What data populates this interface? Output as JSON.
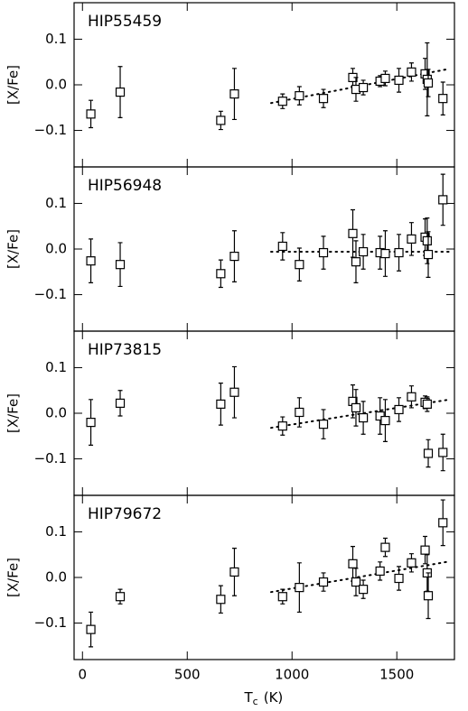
{
  "chart_data": [
    {
      "type": "scatter",
      "title": "HIP55459",
      "ylabel": "[X/Fe]",
      "x": [
        40,
        180,
        660,
        725,
        955,
        1035,
        1150,
        1290,
        1305,
        1340,
        1420,
        1445,
        1510,
        1570,
        1635,
        1645,
        1650,
        1720
      ],
      "values": [
        -0.064,
        -0.016,
        -0.078,
        -0.02,
        -0.036,
        -0.024,
        -0.03,
        0.016,
        -0.01,
        -0.006,
        0.008,
        0.014,
        0.01,
        0.028,
        0.024,
        0.012,
        0.004,
        -0.03
      ],
      "errors": [
        0.03,
        0.056,
        0.02,
        0.056,
        0.016,
        0.02,
        0.02,
        0.02,
        0.026,
        0.016,
        0.012,
        0.016,
        0.026,
        0.02,
        0.034,
        0.08,
        0.03,
        0.036
      ],
      "fit": {
        "x": [
          900,
          1750
        ],
        "values": [
          -0.04,
          0.035
        ]
      },
      "xlim": [
        -40,
        1775
      ],
      "xticks": [
        0,
        500,
        1000,
        1500
      ],
      "ylim": [
        -0.18,
        0.18
      ],
      "yticks": [
        {
          "value": -0.1,
          "label": "−0.1"
        },
        {
          "value": 0,
          "label": "0.0"
        },
        0.1
      ]
    },
    {
      "type": "scatter",
      "title": "HIP56948",
      "ylabel": "[X/Fe]",
      "x": [
        40,
        180,
        660,
        725,
        955,
        1035,
        1150,
        1290,
        1305,
        1340,
        1420,
        1445,
        1510,
        1570,
        1635,
        1645,
        1650,
        1720
      ],
      "values": [
        -0.026,
        -0.034,
        -0.054,
        -0.016,
        0.006,
        -0.034,
        -0.008,
        0.034,
        -0.028,
        -0.006,
        -0.008,
        -0.01,
        -0.008,
        0.022,
        0.026,
        0.018,
        -0.012,
        0.108
      ],
      "errors": [
        0.048,
        0.048,
        0.03,
        0.056,
        0.03,
        0.036,
        0.036,
        0.052,
        0.046,
        0.038,
        0.036,
        0.05,
        0.04,
        0.036,
        0.04,
        0.05,
        0.05,
        0.056
      ],
      "fit": {
        "x": [
          900,
          1750
        ],
        "values": [
          -0.006,
          -0.006
        ]
      },
      "xlim": [
        -40,
        1775
      ],
      "xticks": [
        0,
        500,
        1000,
        1500
      ],
      "ylim": [
        -0.18,
        0.18
      ],
      "yticks": [
        {
          "value": -0.1,
          "label": "−0.1"
        },
        {
          "value": 0,
          "label": "0.0"
        },
        0.1
      ]
    },
    {
      "type": "scatter",
      "title": "HIP73815",
      "ylabel": "[X/Fe]",
      "x": [
        40,
        180,
        660,
        725,
        955,
        1035,
        1150,
        1290,
        1305,
        1340,
        1420,
        1445,
        1510,
        1570,
        1635,
        1645,
        1650,
        1720
      ],
      "values": [
        -0.02,
        0.022,
        0.02,
        0.046,
        -0.028,
        0.002,
        -0.024,
        0.026,
        0.012,
        -0.01,
        -0.006,
        -0.016,
        0.008,
        0.036,
        0.024,
        0.02,
        -0.088,
        -0.086
      ],
      "errors": [
        0.05,
        0.028,
        0.046,
        0.056,
        0.02,
        0.032,
        0.032,
        0.036,
        0.04,
        0.036,
        0.04,
        0.046,
        0.026,
        0.024,
        0.014,
        0.016,
        0.03,
        0.04
      ],
      "fit": {
        "x": [
          900,
          1750
        ],
        "values": [
          -0.032,
          0.03
        ]
      },
      "xlim": [
        -40,
        1775
      ],
      "xticks": [
        0,
        500,
        1000,
        1500
      ],
      "ylim": [
        -0.18,
        0.18
      ],
      "yticks": [
        {
          "value": -0.1,
          "label": "−0.1"
        },
        {
          "value": 0,
          "label": "0.0"
        },
        0.1
      ]
    },
    {
      "type": "scatter",
      "title": "HIP79672",
      "ylabel": "[X/Fe]",
      "xlabel": {
        "main": "T",
        "sub": "c",
        "unit": "(K)"
      },
      "x": [
        40,
        180,
        660,
        725,
        955,
        1035,
        1150,
        1290,
        1305,
        1340,
        1420,
        1445,
        1510,
        1570,
        1635,
        1645,
        1650,
        1720
      ],
      "values": [
        -0.114,
        -0.042,
        -0.048,
        0.012,
        -0.042,
        -0.022,
        -0.01,
        0.03,
        -0.01,
        -0.026,
        0.014,
        0.066,
        -0.002,
        0.032,
        0.06,
        0.01,
        -0.04,
        0.12
      ],
      "errors": [
        0.038,
        0.016,
        0.03,
        0.052,
        0.016,
        0.054,
        0.02,
        0.038,
        0.03,
        0.02,
        0.02,
        0.02,
        0.026,
        0.02,
        0.03,
        0.04,
        0.05,
        0.05
      ],
      "fit": {
        "x": [
          900,
          1750
        ],
        "values": [
          -0.032,
          0.035
        ]
      },
      "xlim": [
        -40,
        1775
      ],
      "xticks": [
        0,
        500,
        1000,
        1500
      ],
      "ylim": [
        -0.18,
        0.18
      ],
      "yticks": [
        {
          "value": -0.1,
          "label": "−0.1"
        },
        {
          "value": 0,
          "label": "0.0"
        },
        0.1
      ]
    }
  ]
}
